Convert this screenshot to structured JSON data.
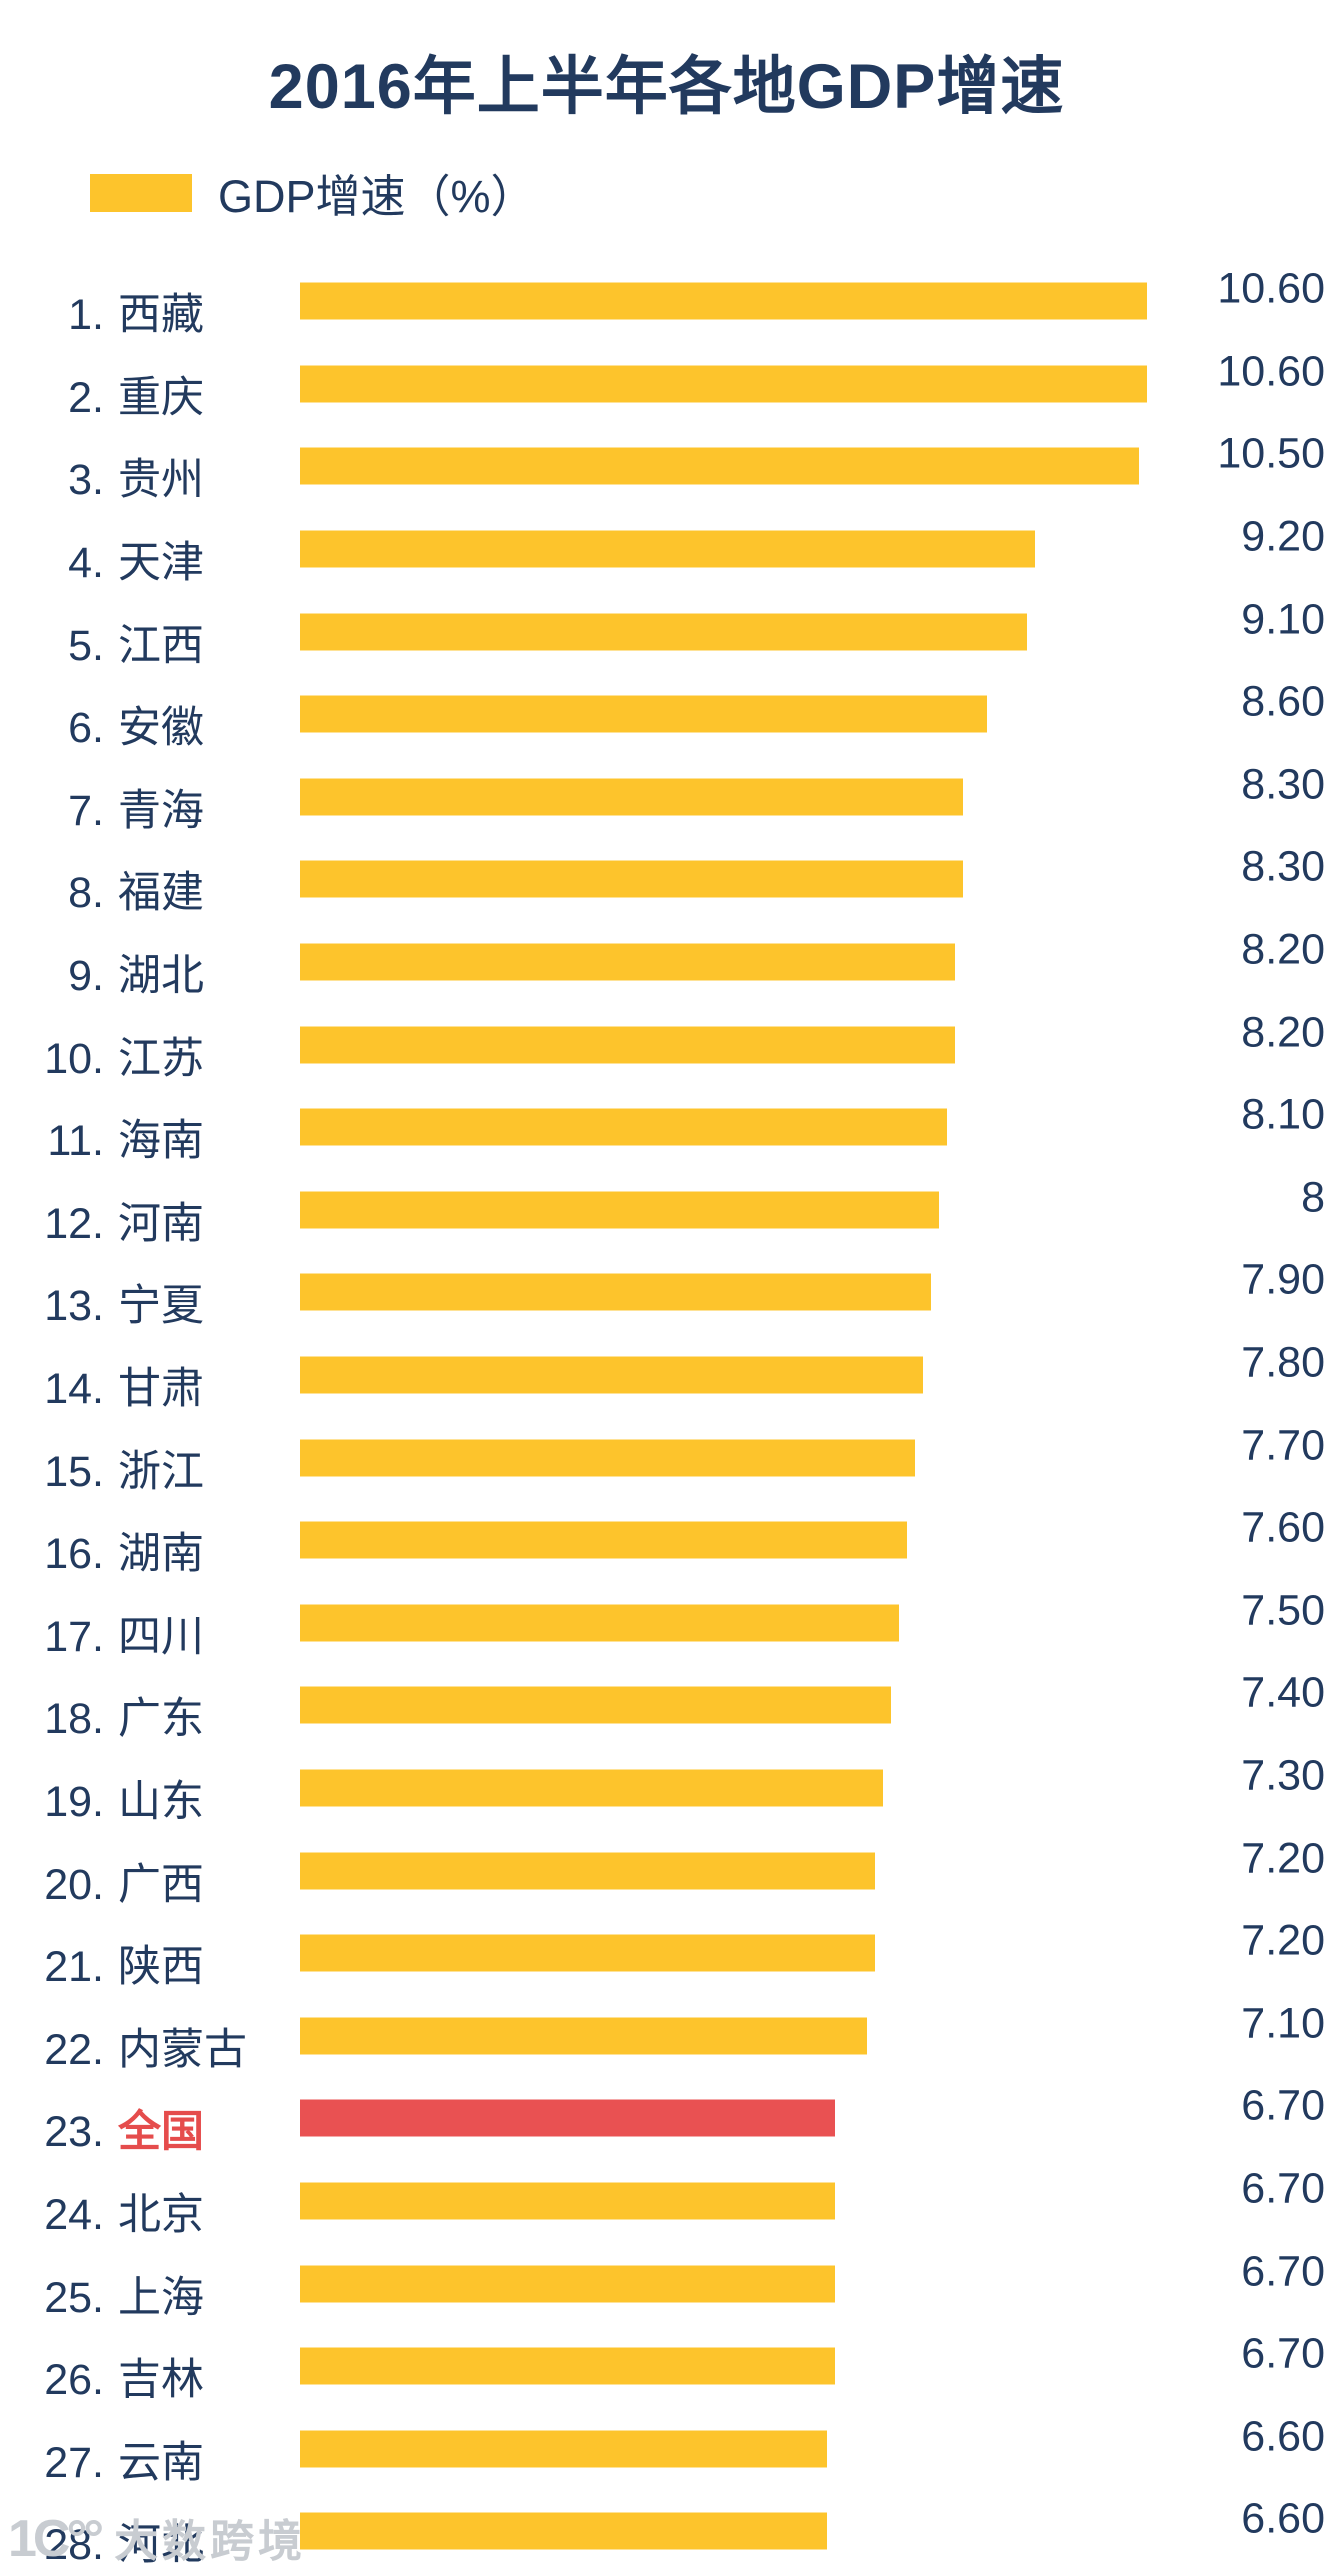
{
  "title": "2016年上半年各地GDP增速",
  "legend": {
    "label": "GDP增速（%）"
  },
  "colors": {
    "bar_yellow": "#fdc42c",
    "bar_red": "#e95152",
    "text_navy": "#223a5e",
    "highlight_text": "#e54c4c",
    "watermark_gray": "#c8ccd1"
  },
  "watermark": {
    "logo": "1C°°",
    "text": "大数跨境"
  },
  "chart_data": {
    "type": "bar",
    "orientation": "horizontal",
    "title": "2016年上半年各地GDP增速",
    "legend_entries": [
      "GDP增速（%）"
    ],
    "xlabel": "",
    "ylabel": "",
    "xlim": [
      0,
      12.9
    ],
    "grid": false,
    "legend_position": "top-left",
    "ranks": [
      "1.",
      "2.",
      "3.",
      "4.",
      "5.",
      "6.",
      "7.",
      "8.",
      "9.",
      "10.",
      "11.",
      "12.",
      "13.",
      "14.",
      "15.",
      "16.",
      "17.",
      "18.",
      "19.",
      "20.",
      "21.",
      "22.",
      "23.",
      "24.",
      "25.",
      "26.",
      "27.",
      "28."
    ],
    "categories": [
      "西藏",
      "重庆",
      "贵州",
      "天津",
      "江西",
      "安徽",
      "青海",
      "福建",
      "湖北",
      "江苏",
      "海南",
      "河南",
      "宁夏",
      "甘肃",
      "浙江",
      "湖南",
      "四川",
      "广东",
      "山东",
      "广西",
      "陕西",
      "内蒙古",
      "全国",
      "北京",
      "上海",
      "吉林",
      "云南",
      "河北"
    ],
    "values": [
      10.6,
      10.6,
      10.5,
      9.2,
      9.1,
      8.6,
      8.3,
      8.3,
      8.2,
      8.2,
      8.1,
      8,
      7.9,
      7.8,
      7.7,
      7.6,
      7.5,
      7.4,
      7.3,
      7.2,
      7.2,
      7.1,
      6.7,
      6.7,
      6.7,
      6.7,
      6.6,
      6.6
    ],
    "value_labels": [
      "10.60",
      "10.60",
      "10.50",
      "9.20",
      "9.10",
      "8.60",
      "8.30",
      "8.30",
      "8.20",
      "8.20",
      "8.10",
      "8",
      "7.90",
      "7.80",
      "7.70",
      "7.60",
      "7.50",
      "7.40",
      "7.30",
      "7.20",
      "7.20",
      "7.10",
      "6.70",
      "6.70",
      "6.70",
      "6.70",
      "6.60",
      "6.60"
    ],
    "series_name": "GDP增速（%）",
    "highlight_index": 22,
    "highlight_category": "全国"
  }
}
